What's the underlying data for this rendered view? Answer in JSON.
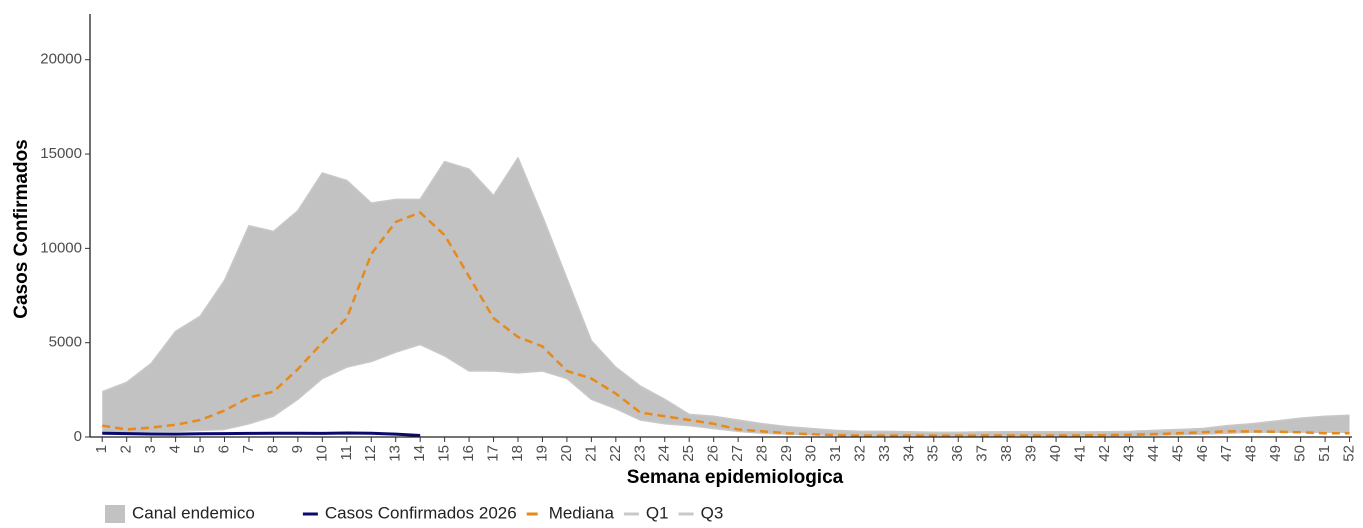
{
  "chart_data": {
    "type": "line",
    "x_label": "Semana epidemiologica",
    "y_label": "Casos Confirmados",
    "x": [
      1,
      2,
      3,
      4,
      5,
      6,
      7,
      8,
      9,
      10,
      11,
      12,
      13,
      14,
      15,
      16,
      17,
      18,
      19,
      20,
      21,
      22,
      23,
      24,
      25,
      26,
      27,
      28,
      29,
      30,
      31,
      32,
      33,
      34,
      35,
      36,
      37,
      38,
      39,
      40,
      41,
      42,
      43,
      44,
      45,
      46,
      47,
      48,
      49,
      50,
      51,
      52
    ],
    "xlim": [
      0.5,
      52.1
    ],
    "xticks": [
      1,
      2,
      3,
      4,
      5,
      6,
      7,
      8,
      9,
      10,
      11,
      12,
      13,
      14,
      15,
      16,
      17,
      18,
      19,
      20,
      21,
      22,
      23,
      24,
      25,
      26,
      27,
      28,
      29,
      30,
      31,
      32,
      33,
      34,
      35,
      36,
      37,
      38,
      39,
      40,
      41,
      42,
      43,
      44,
      45,
      46,
      47,
      48,
      49,
      50,
      51,
      52
    ],
    "ylim": [
      0,
      22000
    ],
    "yticks": [
      0,
      5000,
      10000,
      15000,
      20000
    ],
    "grid": false,
    "legend": "bottom",
    "band": {
      "name": "Canal endemico",
      "color": "#c2c2c2",
      "lower": "Q1",
      "upper": "Q3"
    },
    "series": [
      {
        "name": "Casos Confirmados 2026",
        "color": "#0a0a6e",
        "dash": false,
        "width": 3,
        "values": [
          200,
          180,
          160,
          150,
          170,
          180,
          190,
          200,
          200,
          190,
          210,
          200,
          150,
          80,
          null,
          null,
          null,
          null,
          null,
          null,
          null,
          null,
          null,
          null,
          null,
          null,
          null,
          null,
          null,
          null,
          null,
          null,
          null,
          null,
          null,
          null,
          null,
          null,
          null,
          null,
          null,
          null,
          null,
          null,
          null,
          null,
          null,
          null,
          null,
          null,
          null,
          null
        ]
      },
      {
        "name": "Mediana",
        "color": "#e8891a",
        "dash": true,
        "width": 2.5,
        "values": [
          600,
          400,
          500,
          650,
          900,
          1400,
          2100,
          2400,
          3600,
          5000,
          6300,
          9700,
          11400,
          11900,
          10700,
          8500,
          6300,
          5300,
          4800,
          3500,
          3100,
          2300,
          1300,
          1100,
          900,
          700,
          400,
          300,
          200,
          150,
          100,
          80,
          80,
          80,
          70,
          70,
          80,
          80,
          80,
          80,
          80,
          100,
          120,
          150,
          200,
          250,
          300,
          300,
          280,
          250,
          200,
          200
        ]
      },
      {
        "name": "Q1",
        "color": "#c8c8c8",
        "dash": false,
        "width": 1.5,
        "values": [
          200,
          250,
          300,
          300,
          350,
          400,
          700,
          1100,
          2000,
          3100,
          3700,
          4000,
          4500,
          4900,
          4300,
          3500,
          3500,
          3400,
          3500,
          3100,
          2000,
          1500,
          900,
          700,
          600,
          450,
          300,
          200,
          150,
          120,
          100,
          80,
          80,
          70,
          60,
          60,
          60,
          70,
          70,
          70,
          70,
          70,
          80,
          100,
          120,
          150,
          200,
          250,
          250,
          250,
          250,
          250
        ]
      },
      {
        "name": "Q3",
        "color": "#c8c8c8",
        "dash": false,
        "width": 1.5,
        "values": [
          2400,
          2900,
          3900,
          5600,
          6400,
          8300,
          11200,
          10900,
          12000,
          14000,
          13600,
          12400,
          12600,
          12600,
          14600,
          14200,
          12800,
          14800,
          11700,
          8400,
          5100,
          3700,
          2700,
          2000,
          1200,
          1100,
          900,
          700,
          550,
          450,
          350,
          300,
          300,
          280,
          250,
          250,
          270,
          280,
          280,
          280,
          270,
          280,
          300,
          350,
          400,
          450,
          600,
          700,
          850,
          1000,
          1100,
          1150
        ]
      }
    ]
  }
}
